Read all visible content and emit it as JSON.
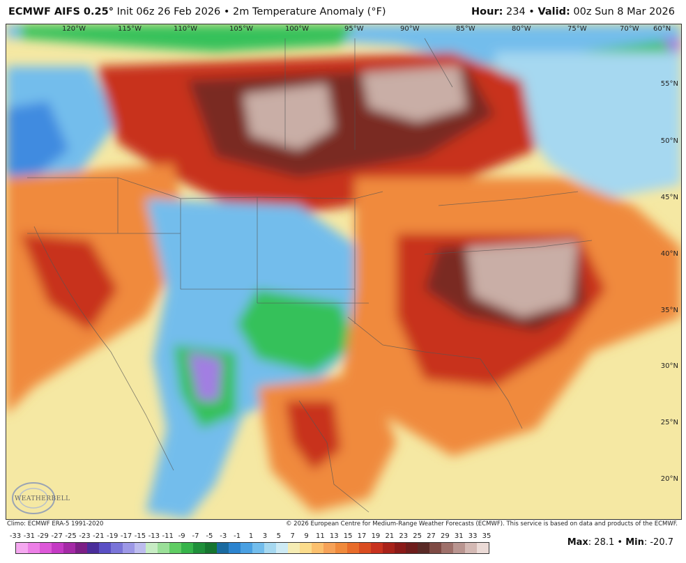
{
  "header": {
    "model": "ECMWF AIFS 0.25",
    "deg": "°",
    "init": " Init 06z 26 Feb 2026 • 2m Temperature Anomaly (",
    "unit_deg": "°",
    "unit_close": "F)",
    "hour_label": "Hour:",
    "hour": " 234 • ",
    "valid_label": "Valid:",
    "valid": " 00z Sun 8 Mar 2026"
  },
  "map": {
    "longitudes": [
      "120°W",
      "115°W",
      "110°W",
      "105°W",
      "100°W",
      "95°W",
      "90°W",
      "85°W",
      "80°W",
      "75°W",
      "70°W",
      "60°N"
    ],
    "latitudes": [
      "55°N",
      "50°N",
      "45°N",
      "40°N",
      "35°N",
      "30°N",
      "25°N",
      "20°N"
    ],
    "logo_text": "WEATHERBELL",
    "colors": {
      "ocean_near_normal": "#f5e8a3",
      "warm_mid": "#f08a3c",
      "warm_strong": "#c8321e",
      "warm_extreme": "#7a2a20",
      "warm_max": "#c9aea6",
      "cold_light": "#a6d8f0",
      "cold_mid": "#3f8be0",
      "cold_green": "#36c15a",
      "cold_purple": "#a27ee2"
    }
  },
  "footer": {
    "climo": "Climo: ECMWF ERA-5 1991-2020",
    "copyright": "© 2026 European Centre for Medium-Range Weather Forecasts (ECMWF). This service is based on data and products of the ECMWF."
  },
  "scale": {
    "labels": [
      "-33",
      "-31",
      "-29",
      "-27",
      "-25",
      "-23",
      "-21",
      "-19",
      "-17",
      "-15",
      "-13",
      "-11",
      "-9",
      "-7",
      "-5",
      "-3",
      "-1",
      "1",
      "3",
      "5",
      "7",
      "9",
      "11",
      "13",
      "15",
      "17",
      "19",
      "21",
      "23",
      "25",
      "27",
      "29",
      "31",
      "33",
      "35"
    ],
    "colors": [
      "#f5a8f0",
      "#ec7fe6",
      "#dd58d8",
      "#c43ac4",
      "#a42aa6",
      "#7c1f86",
      "#4a2d9a",
      "#5a4fc4",
      "#7a74d8",
      "#9d98e6",
      "#bdbcee",
      "#c7ecc4",
      "#9adf98",
      "#5fcc63",
      "#36b34a",
      "#1f8f3a",
      "#167530",
      "#1a6aa0",
      "#2c84cf",
      "#4aa0e2",
      "#73bdec",
      "#a6d8f0",
      "#cdeaf4",
      "#f5ecb4",
      "#fbdc8c",
      "#fbc06e",
      "#f6a258",
      "#f08a3c",
      "#e86c2a",
      "#d94c20",
      "#c8321e",
      "#a82219",
      "#8a1a18",
      "#6e1d1c",
      "#5a2a26",
      "#7e4a44",
      "#9e706a",
      "#b99590",
      "#d4b9b4",
      "#ebdad6"
    ],
    "max_label": "Max",
    "max_value": ": 28.1 • ",
    "min_label": "Min",
    "min_value": ": -20.7"
  }
}
